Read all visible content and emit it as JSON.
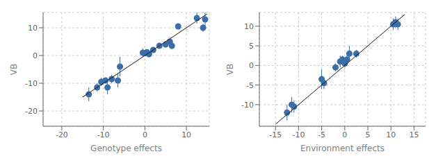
{
  "chart_data": [
    {
      "type": "scatter",
      "xlabel": "Genotype effects",
      "ylabel": "VB",
      "xlim": [
        -24.5,
        15.5
      ],
      "ylim": [
        -25.5,
        15.5
      ],
      "xticks": [
        -20,
        -10,
        0,
        10
      ],
      "yticks": [
        -20,
        -10,
        0,
        10
      ],
      "grid": true,
      "series": [
        {
          "type": "scatter",
          "color": "#3B6EA8",
          "x": [
            -13.5,
            -11.5,
            -10.5,
            -9.5,
            -9.0,
            -8.0,
            -6.5,
            -6.0,
            -0.5,
            0.0,
            0.5,
            1.0,
            2.0,
            3.5,
            5.0,
            6.0,
            6.5,
            8.0,
            12.5,
            14.0,
            14.5
          ],
          "values": [
            -14.0,
            -11.5,
            -9.5,
            -9.0,
            -11.5,
            -8.5,
            -9.0,
            -4.0,
            1.0,
            0.8,
            1.2,
            0.5,
            2.0,
            3.5,
            4.0,
            5.0,
            3.5,
            10.5,
            13.5,
            10.0,
            13.0
          ],
          "yerr_low": [
            2.5,
            1.5,
            1.5,
            1.0,
            2.5,
            1.5,
            2.5,
            3.5,
            1.5,
            1.0,
            1.0,
            1.2,
            1.0,
            1.0,
            1.2,
            1.0,
            1.2,
            1.0,
            2.0,
            1.5,
            2.5
          ],
          "yerr_high": [
            2.5,
            1.5,
            1.5,
            1.0,
            2.5,
            1.5,
            2.5,
            3.5,
            1.5,
            1.0,
            1.0,
            1.2,
            1.0,
            1.0,
            1.2,
            1.0,
            1.2,
            1.0,
            2.0,
            1.5,
            2.5
          ]
        },
        {
          "type": "line",
          "color": "#1a1a1a",
          "x": [
            -15,
            15
          ],
          "values": [
            -15,
            15
          ]
        }
      ]
    },
    {
      "type": "scatter",
      "xlabel": "Environment effects",
      "ylabel": "VB",
      "xlim": [
        -18.5,
        17.5
      ],
      "ylim": [
        -15.5,
        13.5
      ],
      "xticks": [
        -15,
        -10,
        -5,
        0,
        5,
        10,
        15
      ],
      "yticks": [
        -10,
        -5,
        0,
        5,
        10
      ],
      "grid": true,
      "series": [
        {
          "type": "scatter",
          "color": "#3B6EA8",
          "x": [
            -12.5,
            -11.5,
            -11.0,
            -5.0,
            -4.5,
            -2.0,
            -1.0,
            -0.5,
            0.0,
            0.5,
            1.0,
            2.5,
            10.5,
            11.0,
            11.5
          ],
          "values": [
            -12.0,
            -10.0,
            -10.5,
            -3.5,
            -4.5,
            -0.5,
            1.0,
            1.5,
            0.5,
            1.5,
            3.0,
            3.0,
            10.5,
            11.0,
            10.5
          ],
          "yerr_low": [
            2.0,
            2.0,
            1.5,
            2.5,
            1.5,
            1.0,
            1.5,
            1.0,
            1.0,
            1.2,
            2.0,
            1.0,
            1.5,
            1.5,
            1.5
          ],
          "yerr_high": [
            2.0,
            2.0,
            1.5,
            2.5,
            1.5,
            1.0,
            1.5,
            1.0,
            1.0,
            1.2,
            2.0,
            1.0,
            1.5,
            1.5,
            1.5
          ]
        },
        {
          "type": "line",
          "color": "#1a1a1a",
          "x": [
            -15,
            13
          ],
          "values": [
            -15,
            13
          ]
        }
      ]
    }
  ]
}
